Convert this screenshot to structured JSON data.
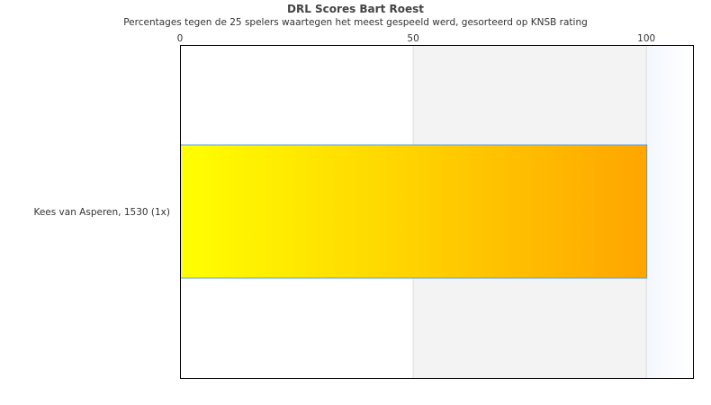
{
  "chart_data": {
    "type": "bar",
    "orientation": "horizontal",
    "title": "DRL Scores Bart Roest",
    "subtitle": "Percentages tegen de 25 spelers waartegen het meest gespeeld werd, gesorteerd op KNSB rating",
    "categories": [
      "Kees van Asperen, 1530 (1x)"
    ],
    "values": [
      100
    ],
    "xlim": [
      0,
      110
    ],
    "xticks": [
      "0",
      "50",
      "100"
    ],
    "xaxis_position": "top",
    "bands": [
      {
        "from": 0,
        "to": 50,
        "color": "#ffffff"
      },
      {
        "from": 50,
        "to": 100,
        "color": "#f3f3f3"
      },
      {
        "from": 100,
        "to": 110,
        "color": "#f5f9fd"
      }
    ],
    "bar_gradient": [
      "#ffff00",
      "#ffa500"
    ],
    "bar_border": "#5aa0e0"
  }
}
